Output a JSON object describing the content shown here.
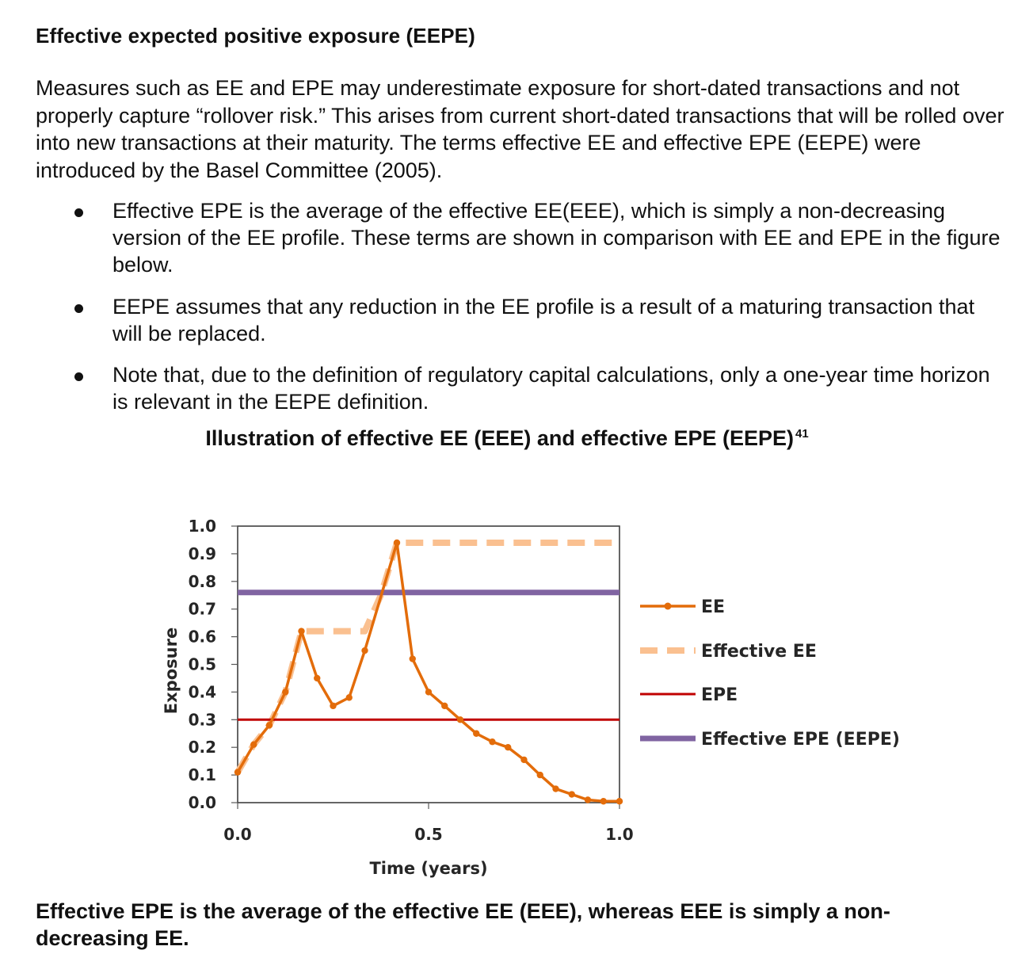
{
  "document": {
    "heading": "Effective expected positive exposure (EEPE)",
    "intro": "Measures such as EE and EPE may underestimate exposure for short-dated transactions and not properly capture “rollover risk.” This arises from current short-dated transactions that will be rolled over into new transactions at their maturity. The terms effective EE and effective EPE (EEPE) were introduced by the Basel Committee (2005).",
    "bullets": [
      "Effective EPE is the average of the effective EE(EEE), which is simply a non-decreasing version of the EE profile. These terms are shown in comparison with EE and EPE in the figure below.",
      "EEPE assumes that any reduction in the EE profile is a result of a maturing transaction that will be replaced.",
      "Note that, due to the definition of regulatory capital calculations, only a one-year time horizon is relevant in the EEPE definition."
    ],
    "figure_title": "Illustration of effective EE (EEE) and effective EPE (EEPE)",
    "figure_footnote": "41",
    "caption": "Effective EPE is the average of the effective EE (EEE), whereas EEE is simply a non-decreasing EE."
  },
  "chart_data": {
    "type": "line",
    "xlabel": "Time (years)",
    "ylabel": "Exposure",
    "xlim": [
      0,
      1.0
    ],
    "ylim": [
      0,
      1.0
    ],
    "xticks": [
      "0.0",
      "0.5",
      "1.0"
    ],
    "yticks": [
      "0.0",
      "0.1",
      "0.2",
      "0.3",
      "0.4",
      "0.5",
      "0.6",
      "0.7",
      "0.8",
      "0.9",
      "1.0"
    ],
    "grid": false,
    "legend_position": "right",
    "series": [
      {
        "name": "EE",
        "color": "#E36C0A",
        "style": "solid-markers",
        "x": [
          0.0,
          0.042,
          0.083,
          0.125,
          0.167,
          0.208,
          0.25,
          0.292,
          0.333,
          0.417,
          0.458,
          0.5,
          0.542,
          0.583,
          0.625,
          0.667,
          0.708,
          0.75,
          0.792,
          0.833,
          0.875,
          0.917,
          0.958,
          1.0
        ],
        "y": [
          0.11,
          0.21,
          0.28,
          0.4,
          0.62,
          0.45,
          0.35,
          0.38,
          0.55,
          0.94,
          0.52,
          0.4,
          0.35,
          0.3,
          0.25,
          0.22,
          0.2,
          0.155,
          0.1,
          0.05,
          0.03,
          0.01,
          0.005,
          0.005
        ]
      },
      {
        "name": "Effective EE",
        "color": "#FAC090",
        "style": "dashed",
        "x": [
          0.0,
          0.042,
          0.083,
          0.125,
          0.167,
          0.208,
          0.25,
          0.292,
          0.333,
          0.375,
          0.417,
          0.458,
          0.5,
          0.583,
          0.667,
          0.75,
          0.833,
          0.917,
          1.0
        ],
        "y": [
          0.11,
          0.21,
          0.28,
          0.4,
          0.62,
          0.62,
          0.62,
          0.62,
          0.62,
          0.75,
          0.94,
          0.94,
          0.94,
          0.94,
          0.94,
          0.94,
          0.94,
          0.94,
          0.94
        ]
      },
      {
        "name": "EPE",
        "color": "#C00000",
        "style": "solid",
        "x": [
          0.0,
          1.0
        ],
        "y": [
          0.3,
          0.3
        ]
      },
      {
        "name": "Effective EPE (EEPE)",
        "color": "#8064A2",
        "style": "solid-thick",
        "x": [
          0.0,
          1.0
        ],
        "y": [
          0.76,
          0.76
        ]
      }
    ]
  }
}
